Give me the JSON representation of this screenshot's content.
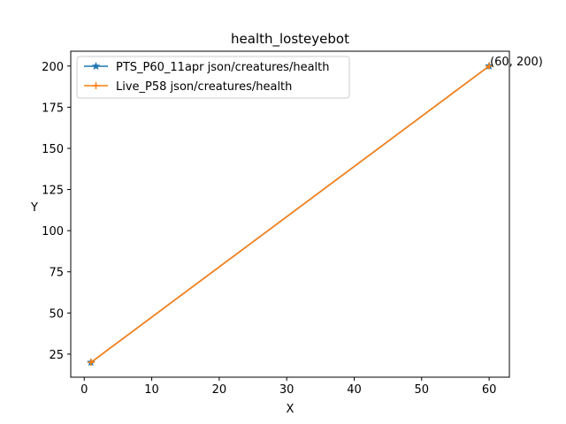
{
  "chart_data": {
    "type": "line",
    "title": "health_losteyebot",
    "xlabel": "X",
    "ylabel": "Y",
    "xlim": [
      -2,
      63
    ],
    "ylim": [
      11,
      209
    ],
    "xticks": [
      0,
      10,
      20,
      30,
      40,
      50,
      60
    ],
    "yticks": [
      25,
      50,
      75,
      100,
      125,
      150,
      175,
      200
    ],
    "grid": false,
    "legend_position": "upper-left",
    "series": [
      {
        "name": "PTS_P60_11apr json/creatures/health",
        "color": "#1f77b4",
        "marker": "star",
        "x": [
          1,
          60
        ],
        "y": [
          20,
          200
        ]
      },
      {
        "name": "Live_P58 json/creatures/health",
        "color": "#ff7f0e",
        "marker": "plus",
        "x": [
          1,
          60
        ],
        "y": [
          20,
          200
        ]
      }
    ],
    "annotations": [
      {
        "text": "(60, 200)",
        "x": 60,
        "y": 200
      }
    ]
  }
}
